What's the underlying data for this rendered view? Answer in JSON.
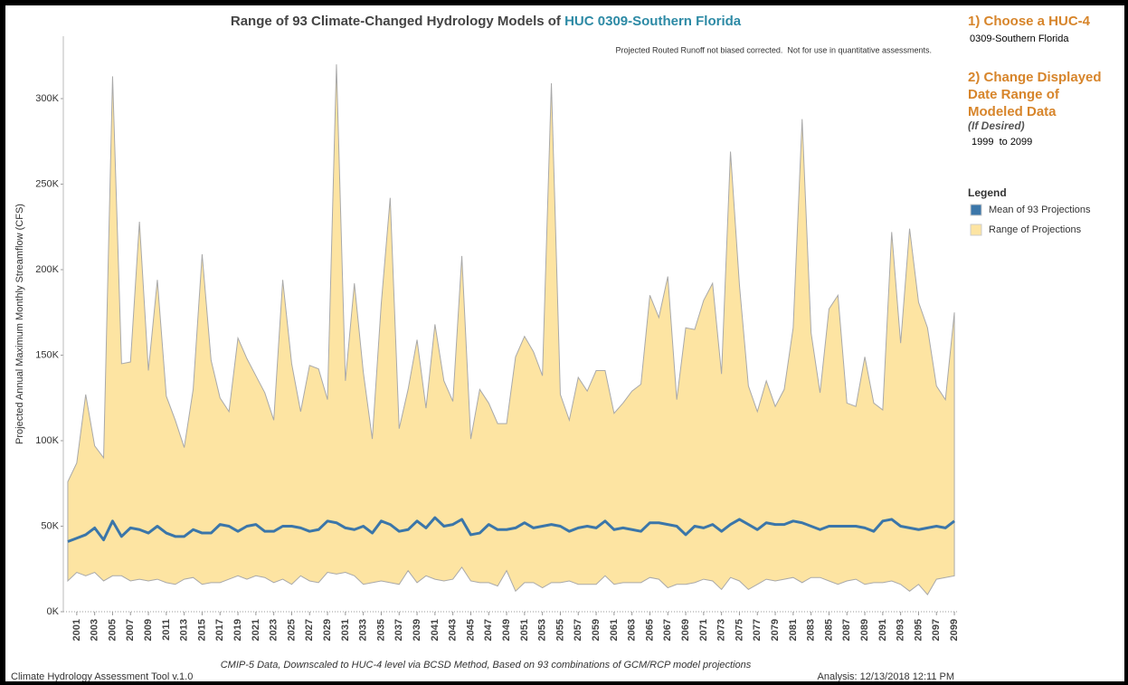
{
  "chart_data": {
    "type": "range-line",
    "title": "Range of 93 Climate-Changed Hydrology Models of ",
    "title_highlight": "HUC 0309-Southern Florida",
    "note": "Projected Routed Runoff not biased corrected.  Not for use in quantitative assessments.",
    "y_label": "Projected Annual Maximum Monthly Streamflow (CFS)",
    "x": [
      2000,
      2001,
      2002,
      2003,
      2004,
      2005,
      2006,
      2007,
      2008,
      2009,
      2010,
      2011,
      2012,
      2013,
      2014,
      2015,
      2016,
      2017,
      2018,
      2019,
      2020,
      2021,
      2022,
      2023,
      2024,
      2025,
      2026,
      2027,
      2028,
      2029,
      2030,
      2031,
      2032,
      2033,
      2034,
      2035,
      2036,
      2037,
      2038,
      2039,
      2040,
      2041,
      2042,
      2043,
      2044,
      2045,
      2046,
      2047,
      2048,
      2049,
      2050,
      2051,
      2052,
      2053,
      2054,
      2055,
      2056,
      2057,
      2058,
      2059,
      2060,
      2061,
      2062,
      2063,
      2064,
      2065,
      2066,
      2067,
      2068,
      2069,
      2070,
      2071,
      2072,
      2073,
      2074,
      2075,
      2076,
      2077,
      2078,
      2079,
      2080,
      2081,
      2082,
      2083,
      2084,
      2085,
      2086,
      2087,
      2088,
      2089,
      2090,
      2091,
      2092,
      2093,
      2094,
      2095,
      2096,
      2097,
      2098,
      2099
    ],
    "series": [
      {
        "name": "Range of Projections",
        "color": "#fde4a2",
        "low": [
          18000,
          23000,
          21000,
          23000,
          18000,
          21000,
          21000,
          18000,
          19000,
          18000,
          19000,
          17000,
          16000,
          19000,
          20000,
          16000,
          17000,
          17000,
          19000,
          21000,
          19000,
          21000,
          20000,
          17000,
          19000,
          16000,
          21000,
          18000,
          17000,
          23000,
          22000,
          23000,
          21000,
          16000,
          17000,
          18000,
          17000,
          16000,
          24000,
          17000,
          21000,
          19000,
          18000,
          19000,
          26000,
          18000,
          17000,
          17000,
          15000,
          24000,
          12000,
          17000,
          17000,
          14000,
          17000,
          17000,
          18000,
          16000,
          16000,
          16000,
          21000,
          16000,
          17000,
          17000,
          17000,
          20000,
          19000,
          14000,
          16000,
          16000,
          17000,
          19000,
          18000,
          13000,
          20000,
          18000,
          13000,
          16000,
          19000,
          18000,
          19000,
          20000,
          17000,
          20000,
          20000,
          18000,
          16000,
          18000,
          19000,
          16000,
          17000,
          17000,
          18000,
          16000,
          12000,
          16000,
          10000,
          19000,
          20000,
          21000
        ],
        "high": [
          76000,
          87000,
          127000,
          97000,
          90000,
          313000,
          145000,
          146000,
          228000,
          141000,
          194000,
          126000,
          112000,
          96000,
          130000,
          209000,
          147000,
          125000,
          117000,
          160000,
          148000,
          138000,
          128000,
          112000,
          194000,
          145000,
          117000,
          144000,
          142000,
          124000,
          320000,
          135000,
          192000,
          140000,
          101000,
          180000,
          242000,
          107000,
          130000,
          159000,
          119000,
          168000,
          135000,
          123000,
          208000,
          101000,
          130000,
          122000,
          110000,
          110000,
          149000,
          161000,
          152000,
          138000,
          309000,
          127000,
          112000,
          137000,
          129000,
          141000,
          141000,
          116000,
          122000,
          129000,
          133000,
          185000,
          172000,
          196000,
          124000,
          166000,
          165000,
          182000,
          192000,
          139000,
          269000,
          191000,
          132000,
          117000,
          135000,
          120000,
          130000,
          166000,
          288000,
          163000,
          128000,
          177000,
          185000,
          122000,
          120000,
          149000,
          122000,
          118000,
          222000,
          157000,
          224000,
          181000,
          166000,
          132000,
          124000,
          175000
        ]
      },
      {
        "name": "Mean of 93 Projections",
        "color": "#3b76a9",
        "values": [
          41000,
          43000,
          45000,
          49000,
          42000,
          53000,
          44000,
          49000,
          48000,
          46000,
          50000,
          46000,
          44000,
          44000,
          48000,
          46000,
          46000,
          51000,
          50000,
          47000,
          50000,
          51000,
          47000,
          47000,
          50000,
          50000,
          49000,
          47000,
          48000,
          53000,
          52000,
          49000,
          48000,
          50000,
          46000,
          53000,
          51000,
          47000,
          48000,
          53000,
          49000,
          55000,
          50000,
          51000,
          54000,
          45000,
          46000,
          51000,
          48000,
          48000,
          49000,
          52000,
          49000,
          50000,
          51000,
          50000,
          47000,
          49000,
          50000,
          49000,
          53000,
          48000,
          49000,
          48000,
          47000,
          52000,
          52000,
          51000,
          50000,
          45000,
          50000,
          49000,
          51000,
          47000,
          51000,
          54000,
          51000,
          48000,
          52000,
          51000,
          51000,
          53000,
          52000,
          50000,
          48000,
          50000,
          50000,
          50000,
          50000,
          49000,
          47000,
          53000,
          54000,
          50000,
          49000,
          48000,
          49000,
          50000,
          49000,
          53000
        ]
      }
    ],
    "xlim": [
      1999.5,
      2099.5
    ],
    "xticks": [
      2001,
      2003,
      2005,
      2007,
      2009,
      2011,
      2013,
      2015,
      2017,
      2019,
      2021,
      2023,
      2025,
      2027,
      2029,
      2031,
      2033,
      2035,
      2037,
      2039,
      2041,
      2043,
      2045,
      2047,
      2049,
      2051,
      2053,
      2055,
      2057,
      2059,
      2061,
      2063,
      2065,
      2067,
      2069,
      2071,
      2073,
      2075,
      2077,
      2079,
      2081,
      2083,
      2085,
      2087,
      2089,
      2091,
      2093,
      2095,
      2097,
      2099
    ],
    "ylim": [
      0,
      336500
    ],
    "yticks": [
      {
        "value": 0,
        "label": "0K"
      },
      {
        "value": 50000,
        "label": "50K"
      },
      {
        "value": 100000,
        "label": "100K"
      },
      {
        "value": 150000,
        "label": "150K"
      },
      {
        "value": 200000,
        "label": "200K"
      },
      {
        "value": 250000,
        "label": "250K"
      },
      {
        "value": 300000,
        "label": "300K"
      }
    ],
    "grid": false,
    "legend_title": "Legend"
  },
  "footer": {
    "caption": "CMIP-5 Data, Downscaled to HUC-4 level via BCSD Method, Based on 93 combinations of GCM/RCP model projections",
    "tool": "Climate Hydrology Assessment Tool v.1.0",
    "analysis": "Analysis: 12/13/2018 12:11 PM"
  },
  "sidebar": {
    "step1": "1) Choose a HUC-4",
    "huc": "0309-Southern Florida",
    "step2": [
      "2) Change Displayed",
      "Date Range of",
      "Modeled Data"
    ],
    "if_desired": "(If Desired)",
    "date_range": "1999  to 2099"
  }
}
